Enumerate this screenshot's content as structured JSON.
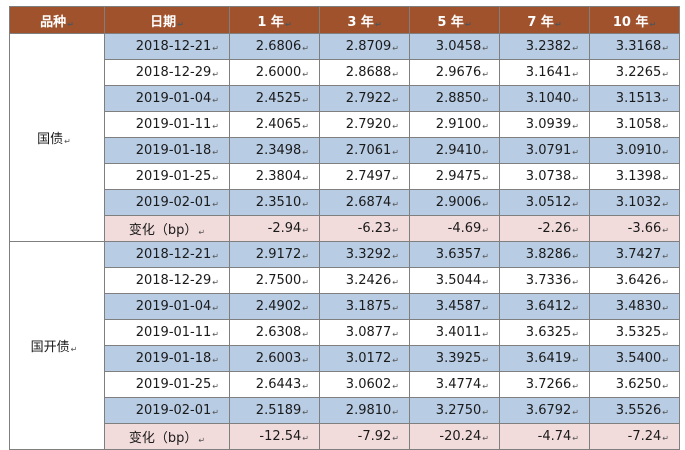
{
  "headers": [
    "品种",
    "日期",
    "1 年",
    "3 年",
    "5 年",
    "7 年",
    "10 年"
  ],
  "groups": [
    {
      "category": "国债",
      "rows": [
        {
          "date": "2018-12-21",
          "values": [
            "2.6806",
            "2.8709",
            "3.0458",
            "3.2382",
            "3.3168"
          ]
        },
        {
          "date": "2018-12-29",
          "values": [
            "2.6000",
            "2.8688",
            "2.9676",
            "3.1641",
            "3.2265"
          ]
        },
        {
          "date": "2019-01-04",
          "values": [
            "2.4525",
            "2.7922",
            "2.8850",
            "3.1040",
            "3.1513"
          ]
        },
        {
          "date": "2019-01-11",
          "values": [
            "2.4065",
            "2.7920",
            "2.9100",
            "3.0939",
            "3.1058"
          ]
        },
        {
          "date": "2019-01-18",
          "values": [
            "2.3498",
            "2.7061",
            "2.9410",
            "3.0791",
            "3.0910"
          ]
        },
        {
          "date": "2019-01-25",
          "values": [
            "2.3804",
            "2.7497",
            "2.9475",
            "3.0738",
            "3.1398"
          ]
        },
        {
          "date": "2019-02-01",
          "values": [
            "2.3510",
            "2.6874",
            "2.9006",
            "3.0512",
            "3.1032"
          ]
        }
      ],
      "change": {
        "label": "变化（bp）",
        "values": [
          "-2.94",
          "-6.23",
          "-4.69",
          "-2.26",
          "-3.66"
        ]
      }
    },
    {
      "category": "国开债",
      "rows": [
        {
          "date": "2018-12-21",
          "values": [
            "2.9172",
            "3.3292",
            "3.6357",
            "3.8286",
            "3.7427"
          ]
        },
        {
          "date": "2018-12-29",
          "values": [
            "2.7500",
            "3.2426",
            "3.5044",
            "3.7336",
            "3.6426"
          ]
        },
        {
          "date": "2019-01-04",
          "values": [
            "2.4902",
            "3.1875",
            "3.4587",
            "3.6412",
            "3.4830"
          ]
        },
        {
          "date": "2019-01-11",
          "values": [
            "2.6308",
            "3.0877",
            "3.4011",
            "3.6325",
            "3.5325"
          ]
        },
        {
          "date": "2019-01-18",
          "values": [
            "2.6003",
            "3.0172",
            "3.3925",
            "3.6419",
            "3.5400"
          ]
        },
        {
          "date": "2019-01-25",
          "values": [
            "2.6443",
            "3.0602",
            "3.4774",
            "3.7266",
            "3.6250"
          ]
        },
        {
          "date": "2019-02-01",
          "values": [
            "2.5189",
            "2.9810",
            "3.2750",
            "3.6792",
            "3.5526"
          ]
        }
      ],
      "change": {
        "label": "变化（bp）",
        "values": [
          "-12.54",
          "-7.92",
          "-20.24",
          "-4.74",
          "-7.24"
        ]
      }
    }
  ],
  "colors": {
    "header_bg": "#a0522d",
    "row_blue": "#b8cce4",
    "row_white": "#ffffff",
    "change_bg": "#f2dcdb"
  }
}
